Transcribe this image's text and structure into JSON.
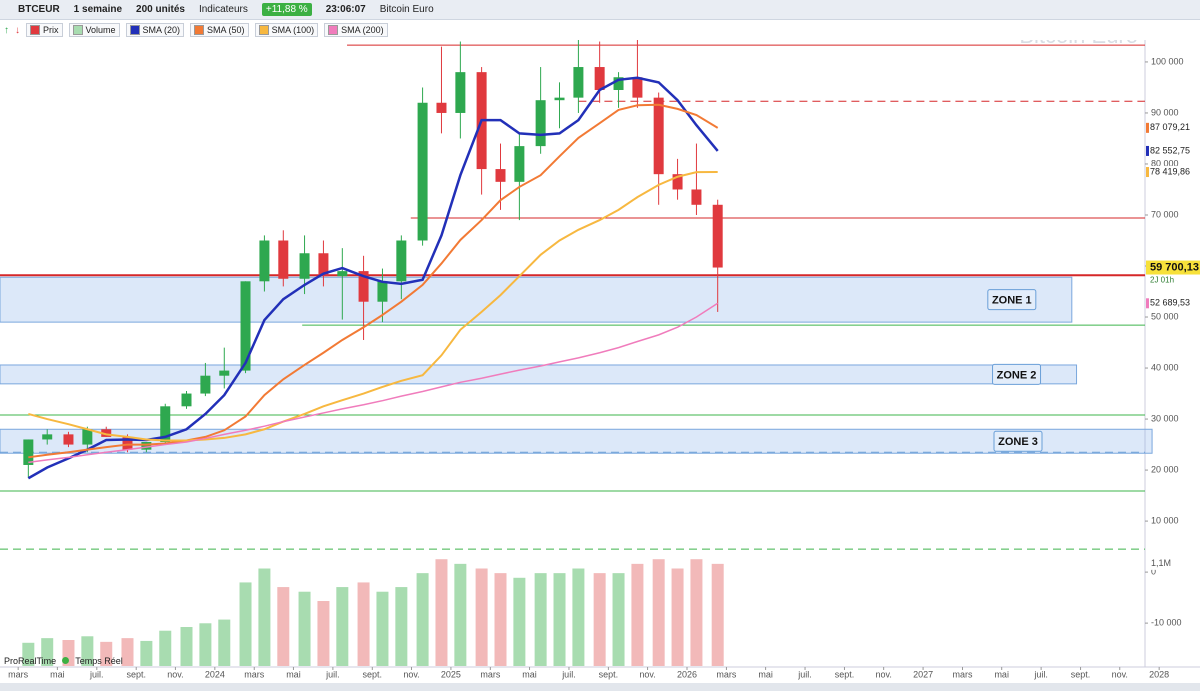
{
  "toolbar": {
    "symbol": "BTCEUR",
    "period": "1 semaine",
    "units": "200 unités",
    "indicators": "Indicateurs",
    "change": "+11,88 %",
    "time": "23:06:07",
    "name": "Bitcoin Euro"
  },
  "footer": {
    "brand": "ProRealTime",
    "mode": "Temps Réel"
  },
  "chart_data": {
    "type": "candlestick",
    "title": "Bitcoin Euro",
    "xlim": [
      2023.09,
      2027.94
    ],
    "ylim": [
      -18600,
      104300
    ],
    "x": [
      2023.21,
      2023.29,
      2023.38,
      2023.46,
      2023.54,
      2023.63,
      2023.71,
      2023.79,
      2023.88,
      2023.96,
      2024.04,
      2024.13,
      2024.21,
      2024.29,
      2024.38,
      2024.46,
      2024.54,
      2024.63,
      2024.71,
      2024.79,
      2024.88,
      2024.96,
      2025.04,
      2025.13,
      2025.21,
      2025.29,
      2025.38,
      2025.46,
      2025.54,
      2025.63,
      2025.71,
      2025.79,
      2025.88,
      2025.96,
      2026.04,
      2026.13
    ],
    "ohlc": {
      "name": "Prix",
      "up_color": "#2ea84f",
      "down_color": "#e0393e",
      "open": [
        21000,
        26000,
        27000,
        25000,
        28000,
        26500,
        24000,
        25500,
        32500,
        35000,
        38500,
        39500,
        57000,
        65000,
        57500,
        62500,
        58000,
        59000,
        53000,
        57000,
        65000,
        92000,
        90000,
        98000,
        79000,
        76500,
        83500,
        92500,
        93000,
        99000,
        94500,
        97000,
        93000,
        78000,
        75000,
        72000
      ],
      "high": [
        26000,
        28000,
        27500,
        28500,
        28500,
        27000,
        25500,
        33000,
        35500,
        41000,
        44000,
        57000,
        66000,
        67000,
        66000,
        65000,
        63500,
        62000,
        59500,
        66000,
        95000,
        103000,
        104000,
        99000,
        84000,
        86000,
        99000,
        96000,
        105000,
        104000,
        98000,
        107000,
        94000,
        81000,
        84000,
        73000
      ],
      "low": [
        18500,
        25000,
        24500,
        23500,
        26500,
        23500,
        23500,
        25000,
        32000,
        34500,
        36000,
        39000,
        55000,
        56000,
        54500,
        56000,
        49500,
        45500,
        49000,
        53500,
        64000,
        86000,
        85000,
        74000,
        71000,
        69000,
        82000,
        87000,
        90000,
        92000,
        91000,
        91000,
        72000,
        73000,
        70000,
        51000
      ],
      "close": [
        26000,
        27000,
        25000,
        28000,
        26500,
        24000,
        25500,
        32500,
        35000,
        38500,
        39500,
        57000,
        65000,
        57500,
        62500,
        58000,
        59000,
        53000,
        57000,
        65000,
        92000,
        90000,
        98000,
        79000,
        76500,
        83500,
        92500,
        93000,
        99000,
        94500,
        97000,
        93000,
        78000,
        75000,
        72000,
        59700.13
      ],
      "last_label": "59 700,13",
      "countdown": "2J 01h"
    },
    "series": [
      {
        "name": "SMA (20)",
        "color": "#2230b8",
        "last_label": "82 552,75",
        "values": [
          18400,
          20500,
          22300,
          24000,
          25900,
          26000,
          25900,
          26500,
          28000,
          31000,
          34700,
          41000,
          49400,
          53500,
          56300,
          58500,
          59600,
          58000,
          56900,
          56500,
          57300,
          66000,
          77800,
          88600,
          88600,
          86000,
          85700,
          86000,
          88600,
          94500,
          96500,
          96900,
          96000,
          92500,
          87600,
          82552.75
        ]
      },
      {
        "name": "SMA (50)",
        "color": "#f27a35",
        "last_label": "87 079,21",
        "values": [
          22500,
          23000,
          23500,
          24000,
          24500,
          25000,
          25000,
          25200,
          25800,
          26500,
          27800,
          30500,
          34700,
          37800,
          40600,
          43000,
          45500,
          48000,
          50400,
          53000,
          56300,
          60500,
          65100,
          69000,
          72900,
          75500,
          77800,
          81500,
          85100,
          88000,
          90600,
          91500,
          91600,
          90800,
          89600,
          87079.21
        ]
      },
      {
        "name": "SMA (100)",
        "color": "#f7b840",
        "last_label": "78 419,86",
        "values": [
          31000,
          30000,
          29000,
          28000,
          27000,
          26500,
          26000,
          25800,
          25800,
          26000,
          26300,
          27000,
          28000,
          29500,
          31000,
          32500,
          33700,
          35000,
          36300,
          37500,
          38600,
          42500,
          47500,
          51000,
          54300,
          58000,
          62200,
          65000,
          67100,
          69000,
          71000,
          73500,
          75900,
          77500,
          78400,
          78419.86
        ]
      },
      {
        "name": "SMA (200)",
        "color": "#f07cbc",
        "last_label": "52 689,53",
        "values": [
          21500,
          22000,
          22500,
          23000,
          23500,
          24000,
          24500,
          25000,
          25500,
          26200,
          27000,
          27800,
          28600,
          29500,
          30400,
          31200,
          32000,
          32800,
          33600,
          34500,
          35400,
          36300,
          37200,
          38000,
          38800,
          39600,
          40400,
          41200,
          42000,
          43000,
          44000,
          45200,
          46500,
          48000,
          50000,
          52689.53
        ]
      }
    ],
    "volume": {
      "name": "Volume",
      "ylim": [
        0,
        1400000
      ],
      "ticks": [
        {
          "value": 1100000,
          "label": "1,1M"
        }
      ],
      "values": [
        250000,
        300000,
        280000,
        320000,
        260000,
        300000,
        270000,
        380000,
        420000,
        460000,
        500000,
        900000,
        1050000,
        850000,
        800000,
        700000,
        850000,
        900000,
        800000,
        850000,
        1000000,
        1150000,
        1100000,
        1050000,
        1000000,
        950000,
        1000000,
        1000000,
        1050000,
        1000000,
        1000000,
        1100000,
        1150000,
        1050000,
        1150000,
        1100000
      ]
    },
    "levels": [
      {
        "value": 103300,
        "x_start": 2024.56,
        "color": "#d62728",
        "style": "solid"
      },
      {
        "value": 92300,
        "x_start": 2025.54,
        "color": "#d62728",
        "style": "dashed"
      },
      {
        "value": 69400,
        "x_start": 2024.83,
        "color": "#d62728",
        "style": "solid"
      },
      {
        "value": 58200,
        "x_start": 2023.09,
        "color": "#d62728",
        "style": "thick"
      },
      {
        "value": 48400,
        "x_start": 2024.37,
        "color": "#3cb44b",
        "style": "solid"
      },
      {
        "value": 30800,
        "x_start": 2023.09,
        "color": "#3cb44b",
        "style": "solid"
      },
      {
        "value": 23500,
        "x_start": 2023.09,
        "color": "#6a9fd8",
        "style": "dashed"
      },
      {
        "value": 15900,
        "x_start": 2023.09,
        "color": "#3cb44b",
        "style": "solid"
      },
      {
        "value": 4500,
        "x_start": 2023.09,
        "color": "#3cb44b",
        "style": "dashed"
      }
    ],
    "zones": [
      {
        "label": "ZONE 1",
        "range": [
          49000,
          57800
        ],
        "x_end": 2027.63
      },
      {
        "label": "ZONE 2",
        "range": [
          36900,
          40600
        ],
        "x_end": 2027.65
      },
      {
        "label": "ZONE 3",
        "range": [
          23300,
          28000
        ],
        "x_end": 2027.97
      }
    ],
    "yticks": [
      {
        "value": -10000,
        "label": "-10 000"
      },
      0,
      {
        "value": 10000,
        "label": "10 000"
      },
      {
        "value": 20000,
        "label": "20 000"
      },
      {
        "value": 30000,
        "label": "30 000"
      },
      {
        "value": 40000,
        "label": "40 000"
      },
      {
        "value": 50000,
        "label": "50 000"
      },
      {
        "value": 60000,
        "label": "60 000"
      },
      {
        "value": 70000,
        "label": "70 000"
      },
      {
        "value": 80000,
        "label": "80 000"
      },
      {
        "value": 90000,
        "label": "90 000"
      },
      {
        "value": 100000,
        "label": "100 000"
      }
    ],
    "xticks": [
      {
        "value": 2023.167,
        "label": "mars"
      },
      {
        "value": 2023.333,
        "label": "mai"
      },
      {
        "value": 2023.5,
        "label": "juil."
      },
      {
        "value": 2023.667,
        "label": "sept."
      },
      {
        "value": 2023.833,
        "label": "nov."
      },
      2024,
      {
        "value": 2024.167,
        "label": "mars"
      },
      {
        "value": 2024.333,
        "label": "mai"
      },
      {
        "value": 2024.5,
        "label": "juil."
      },
      {
        "value": 2024.667,
        "label": "sept."
      },
      {
        "value": 2024.833,
        "label": "nov."
      },
      2025,
      {
        "value": 2025.167,
        "label": "mars"
      },
      {
        "value": 2025.333,
        "label": "mai"
      },
      {
        "value": 2025.5,
        "label": "juil."
      },
      {
        "value": 2025.667,
        "label": "sept."
      },
      {
        "value": 2025.833,
        "label": "nov."
      },
      2026,
      {
        "value": 2026.167,
        "label": "mars"
      },
      {
        "value": 2026.333,
        "label": "mai"
      },
      {
        "value": 2026.5,
        "label": "juil."
      },
      {
        "value": 2026.667,
        "label": "sept."
      },
      {
        "value": 2026.833,
        "label": "nov."
      },
      2027,
      {
        "value": 2027.167,
        "label": "mars"
      },
      {
        "value": 2027.333,
        "label": "mai"
      },
      {
        "value": 2027.5,
        "label": "juil."
      },
      {
        "value": 2027.667,
        "label": "sept."
      },
      {
        "value": 2027.833,
        "label": "nov."
      },
      2028
    ]
  }
}
